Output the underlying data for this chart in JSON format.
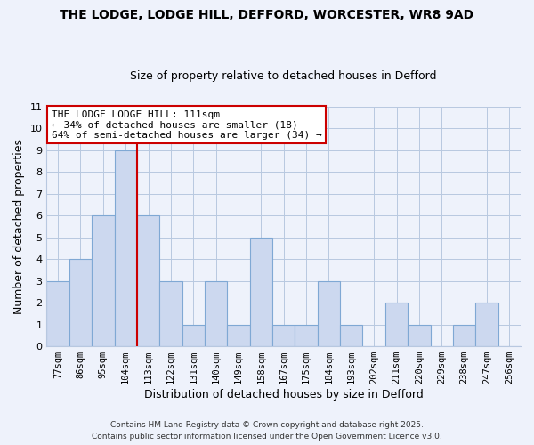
{
  "title": "THE LODGE, LODGE HILL, DEFFORD, WORCESTER, WR8 9AD",
  "subtitle": "Size of property relative to detached houses in Defford",
  "xlabel": "Distribution of detached houses by size in Defford",
  "ylabel": "Number of detached properties",
  "bar_labels": [
    "77sqm",
    "86sqm",
    "95sqm",
    "104sqm",
    "113sqm",
    "122sqm",
    "131sqm",
    "140sqm",
    "149sqm",
    "158sqm",
    "167sqm",
    "175sqm",
    "184sqm",
    "193sqm",
    "202sqm",
    "211sqm",
    "220sqm",
    "229sqm",
    "238sqm",
    "247sqm",
    "256sqm"
  ],
  "bar_values": [
    3,
    4,
    6,
    9,
    6,
    3,
    1,
    3,
    1,
    5,
    1,
    1,
    3,
    1,
    0,
    2,
    1,
    0,
    1,
    2,
    0
  ],
  "bar_color": "#ccd8ef",
  "bar_edge_color": "#7fa8d4",
  "highlight_line_value": 3.5,
  "highlight_color": "#cc0000",
  "ylim": [
    0,
    11
  ],
  "yticks": [
    0,
    1,
    2,
    3,
    4,
    5,
    6,
    7,
    8,
    9,
    10,
    11
  ],
  "annotation_title": "THE LODGE LODGE HILL: 111sqm",
  "annotation_line1": "← 34% of detached houses are smaller (18)",
  "annotation_line2": "64% of semi-detached houses are larger (34) →",
  "annotation_box_color": "#ffffff",
  "annotation_box_edge": "#cc0000",
  "background_color": "#eef2fb",
  "grid_color": "#b8c8e0",
  "footer1": "Contains HM Land Registry data © Crown copyright and database right 2025.",
  "footer2": "Contains public sector information licensed under the Open Government Licence v3.0."
}
